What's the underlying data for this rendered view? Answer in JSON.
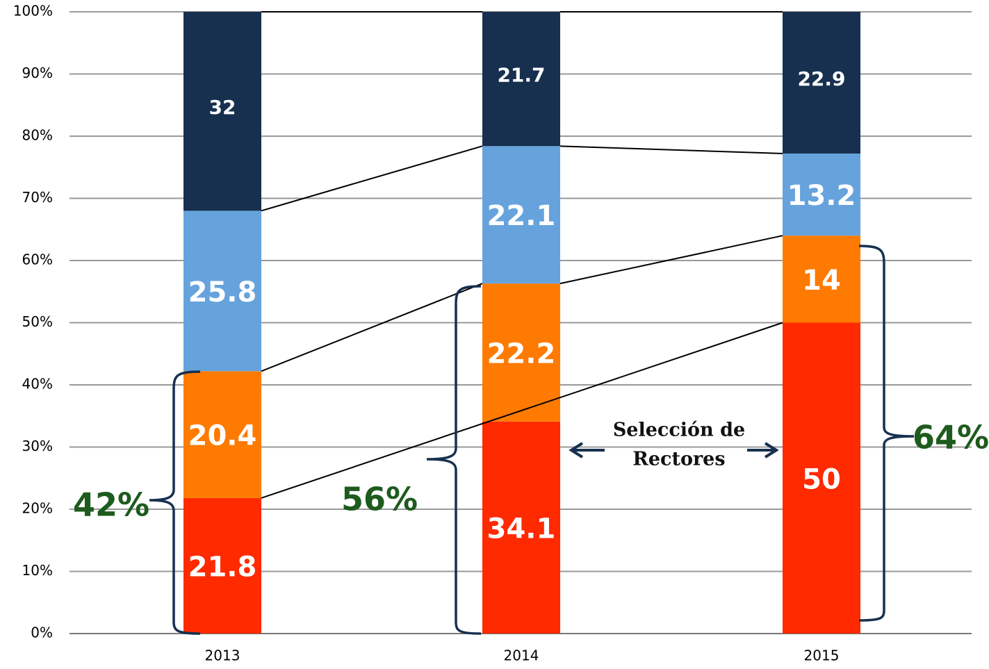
{
  "chart_data": {
    "type": "stacked_bar",
    "categories": [
      "2013",
      "2014",
      "2015"
    ],
    "series": [
      {
        "color": "#ff2a00",
        "values": [
          21.8,
          34.1,
          50
        ]
      },
      {
        "color": "#ff7a00",
        "values": [
          20.4,
          22.2,
          14
        ]
      },
      {
        "color": "#66a3dd",
        "values": [
          25.8,
          22.1,
          13.2
        ]
      },
      {
        "color": "#17304f",
        "values": [
          32,
          21.7,
          22.9
        ]
      }
    ],
    "ylim": [
      0,
      100
    ],
    "yticks": [
      {
        "value": 0,
        "label": "0%"
      },
      {
        "value": 10,
        "label": "10%"
      },
      {
        "value": 20,
        "label": "20%"
      },
      {
        "value": 30,
        "label": "30%"
      },
      {
        "value": 40,
        "label": "40%"
      },
      {
        "value": 50,
        "label": "50%"
      },
      {
        "value": 60,
        "label": "60%"
      },
      {
        "value": 70,
        "label": "70%"
      },
      {
        "value": 80,
        "label": "80%"
      },
      {
        "value": 90,
        "label": "90%"
      },
      {
        "value": 100,
        "label": "100%"
      }
    ],
    "grid": true,
    "annotations": [
      "42%",
      "56%",
      "64%"
    ],
    "arrow_label": [
      "Selección de",
      "Rectores"
    ]
  }
}
